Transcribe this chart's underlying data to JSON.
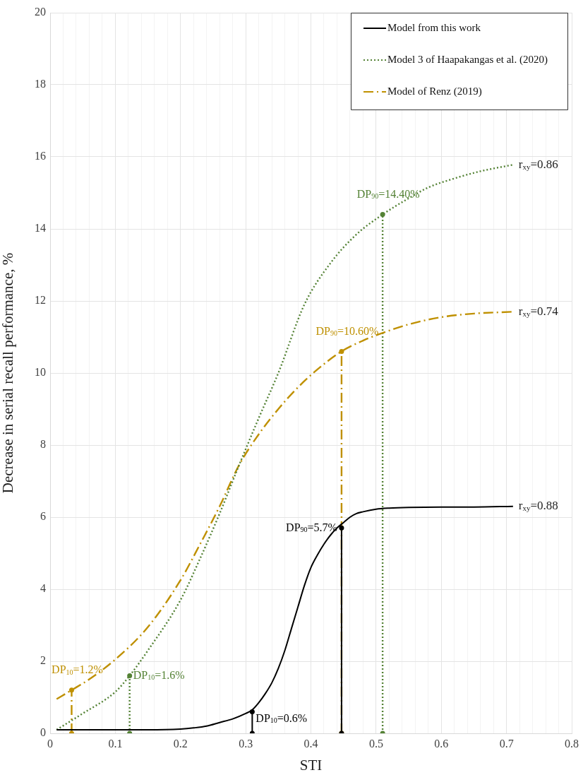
{
  "chart_data": {
    "type": "line",
    "xlabel": "STI",
    "ylabel": "Decrease in serial recall performance, %",
    "xlim": [
      0,
      0.8
    ],
    "xticks": [
      0,
      {
        "value": 0.02,
        "label": null
      },
      {
        "value": 0.04,
        "label": null
      },
      {
        "value": 0.06,
        "label": null
      },
      {
        "value": 0.08,
        "label": null
      },
      0.1,
      {
        "value": 0.12,
        "label": null
      },
      {
        "value": 0.14,
        "label": null
      },
      {
        "value": 0.16,
        "label": null
      },
      {
        "value": 0.18,
        "label": null
      },
      0.2,
      {
        "value": 0.22,
        "label": null
      },
      {
        "value": 0.24,
        "label": null
      },
      {
        "value": 0.26,
        "label": null
      },
      {
        "value": 0.28,
        "label": null
      },
      0.3,
      {
        "value": 0.32,
        "label": null
      },
      {
        "value": 0.34,
        "label": null
      },
      {
        "value": 0.36,
        "label": null
      },
      {
        "value": 0.38,
        "label": null
      },
      0.4,
      {
        "value": 0.42,
        "label": null
      },
      {
        "value": 0.44,
        "label": null
      },
      {
        "value": 0.46,
        "label": null
      },
      {
        "value": 0.48,
        "label": null
      },
      0.5,
      {
        "value": 0.52,
        "label": null
      },
      {
        "value": 0.54,
        "label": null
      },
      {
        "value": 0.56,
        "label": null
      },
      {
        "value": 0.58,
        "label": null
      },
      0.6,
      {
        "value": 0.62,
        "label": null
      },
      {
        "value": 0.64,
        "label": null
      },
      {
        "value": 0.66,
        "label": null
      },
      {
        "value": 0.68,
        "label": null
      },
      0.7,
      {
        "value": 0.72,
        "label": null
      },
      {
        "value": 0.74,
        "label": null
      },
      {
        "value": 0.76,
        "label": null
      },
      {
        "value": 0.78,
        "label": null
      },
      0.8
    ],
    "ylim": [
      0,
      20
    ],
    "yticks": [
      0,
      2,
      4,
      6,
      8,
      10,
      12,
      14,
      16,
      18,
      20
    ],
    "grid": true,
    "legend": "top right",
    "series": [
      {
        "name": "Model from this work",
        "type": "line",
        "color": "#000000",
        "line_style": "solid",
        "marker": "none",
        "x": [
          0.01,
          0.05,
          0.1,
          0.15,
          0.2,
          0.22,
          0.24,
          0.26,
          0.28,
          0.3,
          0.31,
          0.32,
          0.33,
          0.34,
          0.35,
          0.36,
          0.37,
          0.38,
          0.39,
          0.4,
          0.41,
          0.42,
          0.43,
          0.44,
          0.45,
          0.46,
          0.47,
          0.48,
          0.5,
          0.52,
          0.55,
          0.6,
          0.65,
          0.71
        ],
        "values": [
          0.1,
          0.1,
          0.1,
          0.1,
          0.12,
          0.15,
          0.2,
          0.3,
          0.4,
          0.55,
          0.65,
          0.85,
          1.1,
          1.4,
          1.8,
          2.3,
          2.9,
          3.5,
          4.1,
          4.6,
          4.95,
          5.25,
          5.5,
          5.7,
          5.85,
          6.0,
          6.1,
          6.15,
          6.22,
          6.25,
          6.27,
          6.28,
          6.28,
          6.3
        ]
      },
      {
        "name": "Model 3 of Haapakangas et al. (2020)",
        "type": "line",
        "color": "#548235",
        "line_style": "dotted",
        "marker": "none",
        "x": [
          0.01,
          0.05,
          0.1,
          0.122,
          0.15,
          0.2,
          0.23,
          0.26,
          0.29,
          0.32,
          0.35,
          0.39,
          0.43,
          0.47,
          0.51,
          0.55,
          0.58,
          0.62,
          0.66,
          0.71
        ],
        "values": [
          0.1,
          0.55,
          1.15,
          1.6,
          2.3,
          3.7,
          4.85,
          6.1,
          7.45,
          8.75,
          10.0,
          11.9,
          13.05,
          13.85,
          14.4,
          14.85,
          15.15,
          15.4,
          15.6,
          15.78
        ]
      },
      {
        "name": "Model of Renz (2019)",
        "type": "line",
        "color": "#bf9000",
        "line_style": "dashdot",
        "marker": "none",
        "x": [
          0.01,
          0.033,
          0.06,
          0.1,
          0.15,
          0.2,
          0.23,
          0.26,
          0.29,
          0.32,
          0.35,
          0.38,
          0.41,
          0.447,
          0.48,
          0.505,
          0.55,
          0.6,
          0.65,
          0.71
        ],
        "values": [
          0.95,
          1.2,
          1.5,
          2.05,
          2.95,
          4.25,
          5.25,
          6.3,
          7.45,
          8.3,
          9.0,
          9.6,
          10.1,
          10.6,
          10.9,
          11.08,
          11.35,
          11.55,
          11.65,
          11.7
        ]
      },
      {
        "type": "line",
        "color": "#bf9000",
        "line_style": "dashdot",
        "marker": "circle",
        "x": [
          0.033,
          0.033
        ],
        "values": [
          0,
          1.2
        ],
        "value_labels": [
          null,
          "DP$_{10}$=1.2%"
        ]
      },
      {
        "type": "line",
        "color": "#548235",
        "line_style": "dotted",
        "marker": "circle",
        "x": [
          0.122,
          0.122
        ],
        "values": [
          0,
          1.6
        ],
        "value_labels": [
          null,
          "DP$_{10}$=1.6%"
        ]
      },
      {
        "type": "line",
        "color": "#000000",
        "line_style": "solid",
        "marker": "circle",
        "x": [
          0.31,
          0.31
        ],
        "values": [
          0,
          0.6
        ],
        "value_labels": [
          null,
          "DP$_{10}$=0.6%"
        ]
      },
      {
        "type": "line",
        "color": "#000000",
        "line_style": "solid",
        "marker": "circle",
        "x": [
          0.447,
          0.447
        ],
        "values": [
          0,
          5.7
        ],
        "value_labels": [
          null,
          "DP$_{90}$=5.7%"
        ]
      },
      {
        "type": "line",
        "color": "#548235",
        "line_style": "dotted",
        "marker": "circle",
        "x": [
          0.51,
          0.51
        ],
        "values": [
          0,
          14.4
        ],
        "value_labels": [
          null,
          "DP$_{90}$=14.40%"
        ]
      },
      {
        "type": "line",
        "color": "#bf9000",
        "line_style": "dashdot",
        "marker": "circle",
        "x": [
          0.447,
          0.447
        ],
        "values": [
          0,
          10.6
        ],
        "value_labels": [
          null,
          "DP$_{90}$=10.60%"
        ]
      }
    ],
    "annotations": [
      "r$_{xy}$=0.88",
      "r$_{xy}$=0.86",
      "r$_{xy}$=0.74"
    ]
  }
}
